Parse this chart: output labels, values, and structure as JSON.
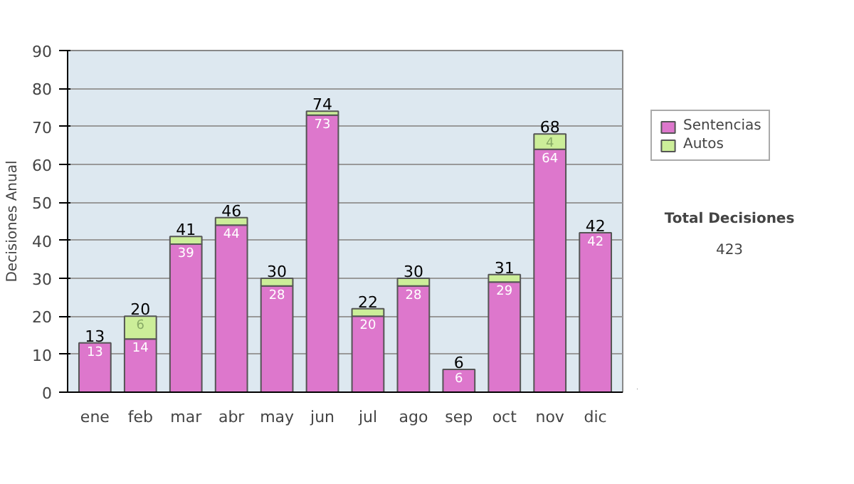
{
  "chart_data": {
    "type": "bar",
    "stacked": true,
    "ylabel": "Decisiones Anual",
    "categories": [
      "ene",
      "feb",
      "mar",
      "abr",
      "may",
      "jun",
      "jul",
      "ago",
      "sep",
      "oct",
      "nov",
      "dic"
    ],
    "series": [
      {
        "name": "Sentencias",
        "color": "#dd77cc",
        "values": [
          13,
          14,
          39,
          44,
          28,
          73,
          20,
          28,
          6,
          29,
          64,
          42
        ],
        "value_labels": [
          "13",
          "14",
          "39",
          "44",
          "28",
          "73",
          "20",
          "28",
          "6",
          "29",
          "64",
          "42"
        ]
      },
      {
        "name": "Autos",
        "color": "#ccee99",
        "values": [
          0,
          6,
          2,
          2,
          2,
          1,
          2,
          2,
          0,
          2,
          4,
          0
        ],
        "value_labels": [
          null,
          "6",
          null,
          null,
          null,
          null,
          null,
          null,
          null,
          null,
          "4",
          null
        ]
      }
    ],
    "totals": [
      "13",
      "20",
      "41",
      "46",
      "30",
      "74",
      "22",
      "30",
      "6",
      "31",
      "68",
      "42"
    ],
    "ylim": [
      0,
      90
    ],
    "yticks": [
      0,
      10,
      20,
      30,
      40,
      50,
      60,
      70,
      80,
      90
    ],
    "grid": "y",
    "legend": "right",
    "annotations": [
      "Total Decisiones",
      "423"
    ]
  }
}
